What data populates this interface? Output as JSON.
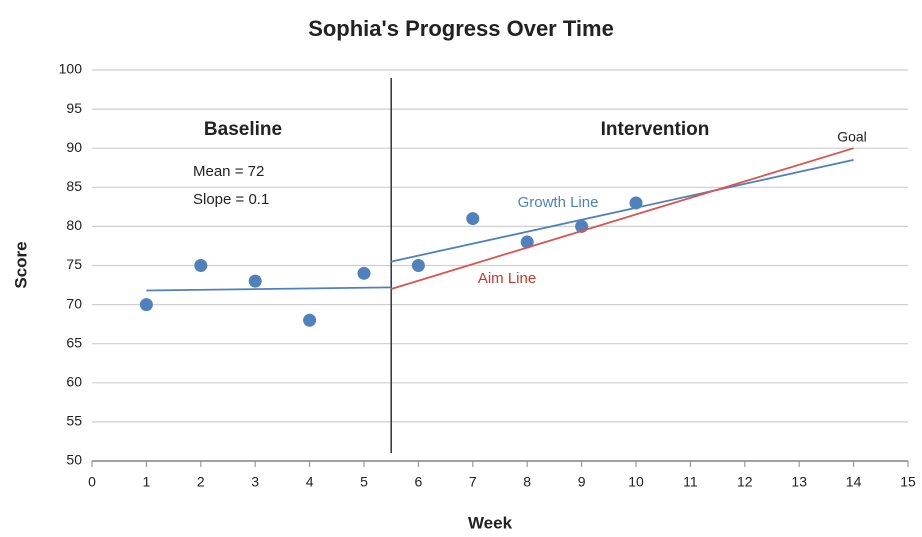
{
  "chart_data": {
    "type": "scatter",
    "title": "Sophia's Progress Over Time",
    "xlabel": "Week",
    "ylabel": "Score",
    "xlim": [
      0,
      15
    ],
    "xticks": [
      0,
      1,
      2,
      3,
      4,
      5,
      6,
      7,
      8,
      9,
      10,
      11,
      12,
      13,
      14,
      15
    ],
    "ylim": [
      50,
      100
    ],
    "yticks": [
      50,
      55,
      60,
      65,
      70,
      75,
      80,
      85,
      90,
      95,
      100
    ],
    "grid": true,
    "series": [
      {
        "mode": "markers",
        "color": "#4f81bd",
        "x": [
          1,
          2,
          3,
          4,
          5,
          6,
          7,
          8,
          9,
          10
        ],
        "values": [
          70,
          75,
          73,
          68,
          74,
          75,
          81,
          78,
          80,
          83
        ]
      },
      {
        "name": "Growth Line",
        "mode": "line",
        "color": "#4f81bd",
        "x": [
          5.5,
          14
        ],
        "values": [
          75.5,
          88.5
        ]
      },
      {
        "name": "Aim Line",
        "mode": "line",
        "color": "#d9534f",
        "x": [
          5.5,
          14
        ],
        "values": [
          72,
          90
        ]
      },
      {
        "mode": "line",
        "color": "#4f81bd",
        "x": [
          1,
          5.5
        ],
        "values": [
          71.8,
          72.2
        ]
      }
    ],
    "phase_line": {
      "x": 5.5,
      "y": [
        51,
        99
      ]
    },
    "annotations": [
      "Baseline",
      "Intervention",
      "Mean = 72",
      "Slope = 0.1",
      "Goal"
    ]
  }
}
